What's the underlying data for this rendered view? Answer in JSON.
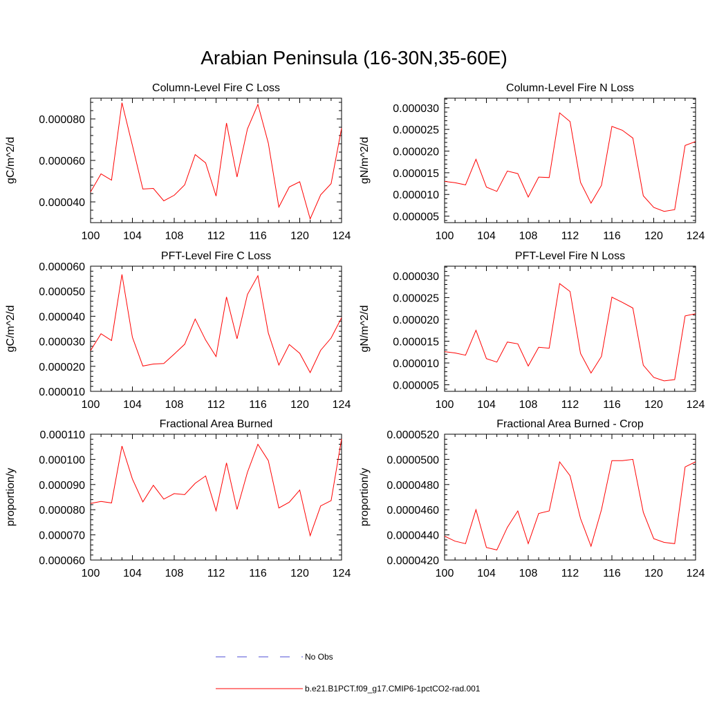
{
  "title": "Arabian Peninsula (16-30N,35-60E)",
  "colors": {
    "series": "#ff0000",
    "obs": "#4b4bd6",
    "axis": "#000000"
  },
  "legend": {
    "entries": [
      {
        "label": "No Obs",
        "style": "dashed",
        "color": "#4b4bd6"
      },
      {
        "label": "b.e21.B1PCT.f09_g17.CMIP6-1pctCO2-rad.001",
        "style": "solid",
        "color": "#ff0000"
      }
    ]
  },
  "chart_data": [
    {
      "type": "line",
      "title": "Column-Level Fire C Loss",
      "ylabel": "gC/m^2/d",
      "xlim": [
        100,
        124
      ],
      "ylim": [
        3e-05,
        9e-05
      ],
      "xticks": [
        "100",
        "104",
        "108",
        "112",
        "116",
        "120",
        "124"
      ],
      "yticks": [
        "0.000040",
        "0.000060",
        "0.000080"
      ],
      "x": [
        100,
        101,
        102,
        103,
        104,
        105,
        106,
        107,
        108,
        109,
        110,
        111,
        112,
        113,
        114,
        115,
        116,
        117,
        118,
        119,
        120,
        121,
        122,
        123,
        124
      ],
      "series": [
        {
          "values": [
            4.48e-05,
            5.35e-05,
            5.05e-05,
            8.78e-05,
            6.72e-05,
            4.62e-05,
            4.65e-05,
            4.05e-05,
            4.32e-05,
            4.82e-05,
            6.28e-05,
            5.88e-05,
            4.28e-05,
            7.8e-05,
            5.2e-05,
            7.52e-05,
            8.7e-05,
            6.83e-05,
            3.75e-05,
            4.72e-05,
            4.97e-05,
            3.18e-05,
            4.34e-05,
            4.88e-05,
            7.55e-05
          ]
        }
      ]
    },
    {
      "type": "line",
      "title": "Column-Level Fire N Loss",
      "ylabel": "gN/m^2/d",
      "xlim": [
        100,
        124
      ],
      "ylim": [
        3.5e-06,
        3.22e-05
      ],
      "xticks": [
        "100",
        "104",
        "108",
        "112",
        "116",
        "120",
        "124"
      ],
      "yticks": [
        "0.000005",
        "0.000010",
        "0.000015",
        "0.000020",
        "0.000025",
        "0.000030"
      ],
      "x": [
        100,
        101,
        102,
        103,
        104,
        105,
        106,
        107,
        108,
        109,
        110,
        111,
        112,
        113,
        114,
        115,
        116,
        117,
        118,
        119,
        120,
        121,
        122,
        123,
        124
      ],
      "series": [
        {
          "values": [
            1.3e-05,
            1.27e-05,
            1.22e-05,
            1.81e-05,
            1.17e-05,
            1.07e-05,
            1.54e-05,
            1.48e-05,
            9.4e-06,
            1.4e-05,
            1.39e-05,
            2.88e-05,
            2.68e-05,
            1.28e-05,
            8e-06,
            1.21e-05,
            2.57e-05,
            2.48e-05,
            2.3e-05,
            9.7e-06,
            7e-06,
            6.1e-06,
            6.5e-06,
            2.13e-05,
            2.22e-05
          ]
        }
      ]
    },
    {
      "type": "line",
      "title": "PFT-Level Fire C Loss",
      "ylabel": "gC/m^2/d",
      "xlim": [
        100,
        124
      ],
      "ylim": [
        1e-05,
        6e-05
      ],
      "xticks": [
        "100",
        "104",
        "108",
        "112",
        "116",
        "120",
        "124"
      ],
      "yticks": [
        "0.000010",
        "0.000020",
        "0.000030",
        "0.000040",
        "0.000050",
        "0.000060"
      ],
      "x": [
        100,
        101,
        102,
        103,
        104,
        105,
        106,
        107,
        108,
        109,
        110,
        111,
        112,
        113,
        114,
        115,
        116,
        117,
        118,
        119,
        120,
        121,
        122,
        123,
        124
      ],
      "series": [
        {
          "values": [
            2.63e-05,
            3.3e-05,
            3.03e-05,
            5.67e-05,
            3.16e-05,
            2.01e-05,
            2.09e-05,
            2.11e-05,
            2.49e-05,
            2.88e-05,
            3.89e-05,
            3.05e-05,
            2.39e-05,
            4.77e-05,
            3.1e-05,
            4.87e-05,
            5.62e-05,
            3.33e-05,
            2.05e-05,
            2.87e-05,
            2.52e-05,
            1.75e-05,
            2.64e-05,
            3.13e-05,
            3.94e-05
          ]
        }
      ]
    },
    {
      "type": "line",
      "title": "PFT-Level Fire N Loss",
      "ylabel": "gN/m^2/d",
      "xlim": [
        100,
        124
      ],
      "ylim": [
        3.5e-06,
        3.22e-05
      ],
      "xticks": [
        "100",
        "104",
        "108",
        "112",
        "116",
        "120",
        "124"
      ],
      "yticks": [
        "0.000005",
        "0.000010",
        "0.000015",
        "0.000020",
        "0.000025",
        "0.000030"
      ],
      "x": [
        100,
        101,
        102,
        103,
        104,
        105,
        106,
        107,
        108,
        109,
        110,
        111,
        112,
        113,
        114,
        115,
        116,
        117,
        118,
        119,
        120,
        121,
        122,
        123,
        124
      ],
      "series": [
        {
          "values": [
            1.26e-05,
            1.23e-05,
            1.18e-05,
            1.75e-05,
            1.1e-05,
            1.02e-05,
            1.48e-05,
            1.44e-05,
            9.3e-06,
            1.36e-05,
            1.34e-05,
            2.82e-05,
            2.64e-05,
            1.22e-05,
            7.7e-06,
            1.15e-05,
            2.51e-05,
            2.39e-05,
            2.26e-05,
            9.5e-06,
            6.7e-06,
            5.9e-06,
            6.2e-06,
            2.08e-05,
            2.13e-05
          ]
        }
      ]
    },
    {
      "type": "line",
      "title": "Fractional Area Burned",
      "ylabel": "proportion/y",
      "xlim": [
        100,
        124
      ],
      "ylim": [
        6e-05,
        0.00011
      ],
      "xticks": [
        "100",
        "104",
        "108",
        "112",
        "116",
        "120",
        "124"
      ],
      "yticks": [
        "0.000060",
        "0.000070",
        "0.000080",
        "0.000090",
        "0.000100",
        "0.000110"
      ],
      "x": [
        100,
        101,
        102,
        103,
        104,
        105,
        106,
        107,
        108,
        109,
        110,
        111,
        112,
        113,
        114,
        115,
        116,
        117,
        118,
        119,
        120,
        121,
        122,
        123,
        124
      ],
      "series": [
        {
          "values": [
            8.25e-05,
            8.33e-05,
            8.27e-05,
            0.0001053,
            9.22e-05,
            8.31e-05,
            8.97e-05,
            8.42e-05,
            8.64e-05,
            8.6e-05,
            9.05e-05,
            9.34e-05,
            7.96e-05,
            9.86e-05,
            8.01e-05,
            9.49e-05,
            0.000106,
            9.95e-05,
            8.07e-05,
            8.3e-05,
            8.78e-05,
            6.97e-05,
            8.15e-05,
            8.36e-05,
            0.0001081
          ]
        }
      ]
    },
    {
      "type": "line",
      "title": "Fractional Area Burned - Crop",
      "ylabel": "proportion/y",
      "xlim": [
        100,
        124
      ],
      "ylim": [
        4.2e-05,
        5.2e-05
      ],
      "xticks": [
        "100",
        "104",
        "108",
        "112",
        "116",
        "120",
        "124"
      ],
      "yticks": [
        "0.0000420",
        "0.0000440",
        "0.0000460",
        "0.0000480",
        "0.0000500",
        "0.0000520"
      ],
      "x": [
        100,
        101,
        102,
        103,
        104,
        105,
        106,
        107,
        108,
        109,
        110,
        111,
        112,
        113,
        114,
        115,
        116,
        117,
        118,
        119,
        120,
        121,
        122,
        123,
        124
      ],
      "series": [
        {
          "values": [
            4.39e-05,
            4.35e-05,
            4.33e-05,
            4.6e-05,
            4.3e-05,
            4.28e-05,
            4.46e-05,
            4.59e-05,
            4.33e-05,
            4.57e-05,
            4.59e-05,
            4.98e-05,
            4.87e-05,
            4.53e-05,
            4.31e-05,
            4.6e-05,
            4.99e-05,
            4.99e-05,
            5e-05,
            4.58e-05,
            4.37e-05,
            4.34e-05,
            4.33e-05,
            4.94e-05,
            4.98e-05
          ]
        }
      ]
    }
  ]
}
